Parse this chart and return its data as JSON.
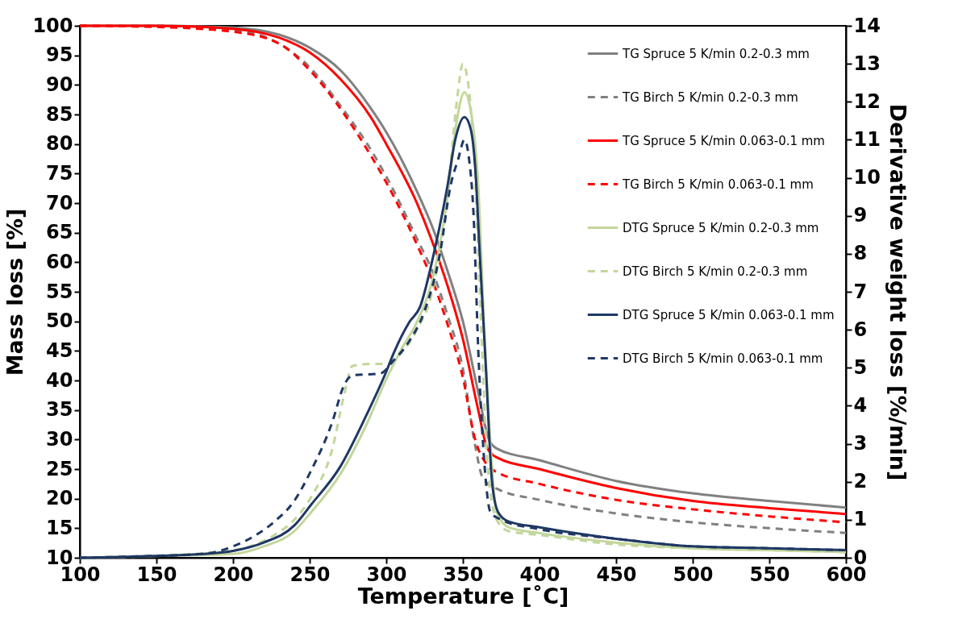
{
  "chart_data": {
    "type": "line",
    "xlabel": "Temperature [˚C]",
    "ylabel": "Mass loss [%]",
    "y2label": "Derivative weight loss [%/min]",
    "xlim": [
      100,
      600
    ],
    "xticks": [
      100,
      150,
      200,
      250,
      300,
      350,
      400,
      450,
      500,
      550,
      600
    ],
    "ylim": [
      10,
      100
    ],
    "yticks": [
      10,
      15,
      20,
      25,
      30,
      35,
      40,
      45,
      50,
      55,
      60,
      65,
      70,
      75,
      80,
      85,
      90,
      95,
      100
    ],
    "y2lim": [
      0,
      14
    ],
    "y2ticks": [
      0,
      1,
      2,
      3,
      4,
      5,
      6,
      7,
      8,
      9,
      10,
      11,
      12,
      13,
      14
    ],
    "grid": false,
    "legend": "top right",
    "marker": "none",
    "series": [
      {
        "name": "TG Spruce 5 K/min 0.2-0.3 mm",
        "color": "#808080",
        "line_style": "solid",
        "x": [
          100,
          150,
          200,
          230,
          250,
          270,
          290,
          300,
          320,
          330,
          340,
          350,
          360,
          367,
          372,
          400,
          450,
          500,
          550,
          600
        ],
        "values": [
          100,
          100,
          99.7,
          98.5,
          96.3,
          92.5,
          86,
          82,
          72,
          66,
          58.5,
          50,
          38,
          30,
          28.5,
          26.5,
          23,
          20.9,
          19.6,
          18.5
        ]
      },
      {
        "name": "TG Birch 5 K/min 0.2-0.3 mm",
        "color": "#808080",
        "line_style": "dashed",
        "x": [
          100,
          150,
          200,
          230,
          250,
          270,
          290,
          300,
          320,
          330,
          340,
          350,
          358,
          363,
          372,
          400,
          450,
          500,
          550,
          600
        ],
        "values": [
          100,
          100,
          99.3,
          97,
          93,
          86.5,
          79,
          74.5,
          64,
          58.5,
          51,
          42,
          29,
          23.5,
          21.7,
          19.8,
          17.5,
          16,
          15,
          14.2
        ]
      },
      {
        "name": "TG Spruce 5 K/min 0.063-0.1 mm",
        "color": "#ff0000",
        "line_style": "solid",
        "x": [
          100,
          150,
          200,
          230,
          250,
          270,
          290,
          300,
          320,
          330,
          340,
          350,
          360,
          366,
          372,
          400,
          450,
          500,
          550,
          600
        ],
        "values": [
          100,
          100,
          99.5,
          98,
          95.5,
          91,
          84.5,
          80,
          70,
          63.5,
          56,
          47,
          35,
          28.5,
          27,
          25,
          21.8,
          19.6,
          18.4,
          17.4
        ]
      },
      {
        "name": "TG Birch 5 K/min 0.063-0.1 mm",
        "color": "#ff0000",
        "line_style": "dashed",
        "x": [
          100,
          150,
          200,
          230,
          250,
          270,
          290,
          300,
          320,
          330,
          340,
          350,
          358,
          365,
          372,
          400,
          450,
          500,
          550,
          600
        ],
        "values": [
          100,
          99.8,
          99,
          97,
          92.5,
          86,
          78,
          73.5,
          63,
          57,
          49.5,
          40.5,
          30,
          26,
          24.5,
          22.5,
          19.8,
          18.2,
          17,
          16
        ]
      },
      {
        "name": "DTG Spruce 5 K/min 0.2-0.3 mm",
        "color": "#c3d69b",
        "line_style": "solid",
        "axis": "y2",
        "x": [
          100,
          150,
          200,
          220,
          240,
          251,
          270,
          287,
          300,
          310,
          320,
          330,
          340,
          346,
          351,
          355,
          360,
          364,
          368,
          372,
          380,
          400,
          450,
          500,
          550,
          600
        ],
        "values": [
          0,
          0.05,
          0.1,
          0.3,
          0.7,
          1.2,
          2.2,
          3.5,
          4.7,
          5.5,
          6.2,
          7.3,
          9.5,
          11.5,
          12.25,
          11.8,
          9.8,
          6,
          3,
          1.2,
          0.8,
          0.65,
          0.4,
          0.25,
          0.2,
          0.15
        ]
      },
      {
        "name": "DTG Birch 5 K/min 0.2-0.3 mm",
        "color": "#c3d69b",
        "line_style": "dashed",
        "axis": "y2",
        "x": [
          100,
          150,
          200,
          227,
          240,
          251,
          265,
          272,
          278,
          290,
          300,
          310,
          320,
          330,
          340,
          346,
          350,
          354,
          358,
          362,
          366,
          372,
          380,
          400,
          450,
          500,
          550,
          600
        ],
        "values": [
          0,
          0.05,
          0.2,
          0.6,
          1.0,
          1.6,
          2.9,
          4.2,
          5.05,
          5.1,
          5.1,
          5.4,
          6.0,
          7.0,
          9.5,
          12.0,
          13.0,
          12.3,
          10,
          6,
          2.5,
          1.0,
          0.7,
          0.6,
          0.35,
          0.25,
          0.2,
          0.15
        ]
      },
      {
        "name": "DTG Spruce 5 K/min 0.063-0.1 mm",
        "color": "#1f3864",
        "line_style": "solid",
        "axis": "y2",
        "x": [
          100,
          150,
          180,
          200,
          220,
          240,
          251,
          270,
          287,
          300,
          305,
          315,
          322,
          331,
          340,
          345,
          351,
          355,
          358,
          361,
          365,
          369,
          373,
          380,
          400,
          450,
          500,
          550,
          600
        ],
        "values": [
          0,
          0.05,
          0.1,
          0.18,
          0.4,
          0.85,
          1.4,
          2.4,
          3.75,
          4.9,
          5.4,
          6.2,
          6.6,
          8.0,
          9.8,
          11.0,
          11.6,
          11.3,
          10.3,
          8,
          5,
          2,
          1.2,
          0.95,
          0.8,
          0.5,
          0.3,
          0.25,
          0.2
        ]
      },
      {
        "name": "DTG Birch 5 K/min 0.063-0.1 mm",
        "color": "#1f3864",
        "line_style": "dashed",
        "axis": "y2",
        "x": [
          100,
          150,
          180,
          200,
          215,
          227,
          240,
          251,
          265,
          272,
          278,
          296,
          305,
          315,
          325,
          335,
          342,
          347,
          351,
          354,
          357,
          360,
          364,
          368,
          375,
          400,
          450,
          500,
          550,
          600
        ],
        "values": [
          0,
          0.05,
          0.1,
          0.3,
          0.6,
          0.95,
          1.5,
          2.3,
          3.6,
          4.5,
          4.8,
          4.85,
          5.2,
          5.7,
          6.5,
          8.0,
          9.8,
          10.5,
          11.0,
          10.5,
          9,
          5.5,
          2.5,
          1.2,
          1.0,
          0.75,
          0.5,
          0.3,
          0.25,
          0.2
        ]
      }
    ]
  }
}
